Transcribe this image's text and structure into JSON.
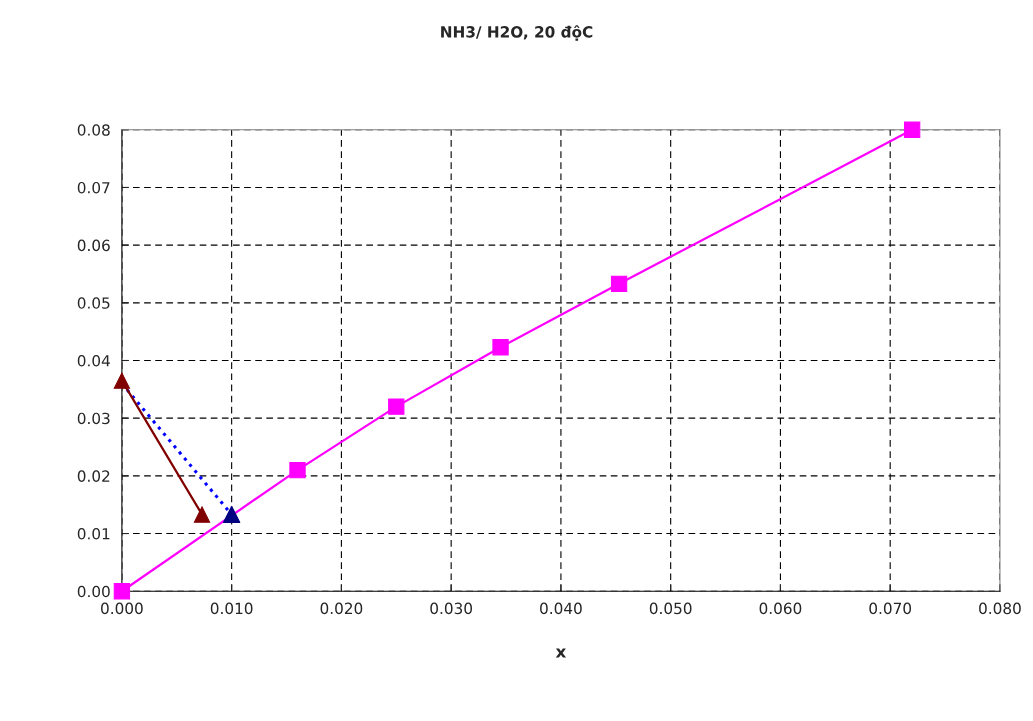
{
  "chart_data": {
    "type": "line",
    "title": "NH3/ H2O, 20 độC",
    "xlabel": "x",
    "series": [
      {
        "color": "#ff00ff",
        "marker": "square",
        "line_style": "solid",
        "x": [
          0,
          0.016,
          0.025,
          0.0345,
          0.0453,
          0.072
        ],
        "values": [
          0,
          0.021,
          0.032,
          0.0423,
          0.0533,
          0.08
        ]
      },
      {
        "color": "#0000ff",
        "marker": "none",
        "line_style": "dotted",
        "x": [
          0,
          0.01
        ],
        "values": [
          0.036,
          0.0133
        ]
      },
      {
        "type": "scatter",
        "color": "#000080",
        "marker": "triangle",
        "x": [
          0.01
        ],
        "values": [
          0.0133
        ]
      },
      {
        "color": "#800000",
        "marker": "triangle",
        "line_style": "solid",
        "x": [
          0,
          0.0073
        ],
        "values": [
          0.0365,
          0.0133
        ]
      }
    ],
    "xlim": [
      0,
      0.08
    ],
    "xticks": [
      {
        "value": 0,
        "label": "0.000"
      },
      {
        "value": 0.01,
        "label": "0.010"
      },
      {
        "value": 0.02,
        "label": "0.020"
      },
      {
        "value": 0.03,
        "label": "0.030"
      },
      {
        "value": 0.04,
        "label": "0.040"
      },
      {
        "value": 0.05,
        "label": "0.050"
      },
      {
        "value": 0.06,
        "label": "0.060"
      },
      {
        "value": 0.07,
        "label": "0.070"
      },
      {
        "value": 0.08,
        "label": "0.080"
      }
    ],
    "ylim": [
      0,
      0.08
    ],
    "yticks": [
      {
        "value": 0,
        "label": "0.00"
      },
      {
        "value": 0.01,
        "label": "0.01"
      },
      {
        "value": 0.02,
        "label": "0.02"
      },
      {
        "value": 0.03,
        "label": "0.03"
      },
      {
        "value": 0.04,
        "label": "0.04"
      },
      {
        "value": 0.05,
        "label": "0.05"
      },
      {
        "value": 0.06,
        "label": "0.06"
      },
      {
        "value": 0.07,
        "label": "0.07"
      },
      {
        "value": 0.08,
        "label": "0.08"
      }
    ],
    "grid": true,
    "legend": false
  }
}
